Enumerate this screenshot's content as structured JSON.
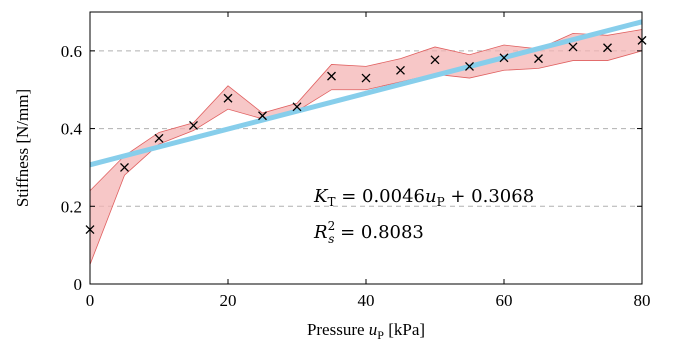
{
  "chart_data": {
    "type": "line",
    "xlabel": "Pressure u",
    "xlabel_sub": "P",
    "xlabel_unit": "[kPa]",
    "ylabel": "Stiffness [N/mm]",
    "xlim": [
      0,
      80
    ],
    "ylim": [
      0,
      0.7
    ],
    "xticks": [
      0,
      20,
      40,
      60,
      80
    ],
    "yticks": [
      0,
      0.2,
      0.4,
      0.6
    ],
    "ytick_labels": [
      "0",
      "0.2",
      "0.4",
      "0.6"
    ],
    "grid": "horizontal-dashed",
    "series": [
      {
        "kind": "scatter",
        "marker": "x",
        "color": "#000000",
        "x": [
          0,
          5,
          10,
          15,
          20,
          25,
          30,
          35,
          40,
          45,
          50,
          55,
          60,
          65,
          70,
          75,
          80
        ],
        "y": [
          0.14,
          0.3,
          0.375,
          0.408,
          0.478,
          0.433,
          0.456,
          0.535,
          0.53,
          0.55,
          0.577,
          0.56,
          0.582,
          0.58,
          0.61,
          0.608,
          0.627
        ]
      },
      {
        "kind": "band",
        "color": "#f4b4b4",
        "edge_color": "#e06060",
        "x": [
          0,
          5,
          10,
          15,
          20,
          25,
          30,
          35,
          40,
          45,
          50,
          55,
          60,
          65,
          70,
          75,
          80
        ],
        "upper": [
          0.24,
          0.33,
          0.39,
          0.415,
          0.51,
          0.44,
          0.465,
          0.565,
          0.56,
          0.58,
          0.61,
          0.59,
          0.615,
          0.605,
          0.645,
          0.64,
          0.655
        ],
        "lower": [
          0.05,
          0.28,
          0.36,
          0.395,
          0.45,
          0.425,
          0.445,
          0.5,
          0.5,
          0.52,
          0.54,
          0.53,
          0.55,
          0.555,
          0.575,
          0.575,
          0.6
        ]
      },
      {
        "kind": "fit",
        "color": "#87ceeb",
        "slope": 0.0046,
        "intercept": 0.3068
      }
    ],
    "annotation": {
      "line1": "K_T = 0.0046u_P + 0.3068",
      "line2": "R_s^2 = 0.8083"
    }
  }
}
